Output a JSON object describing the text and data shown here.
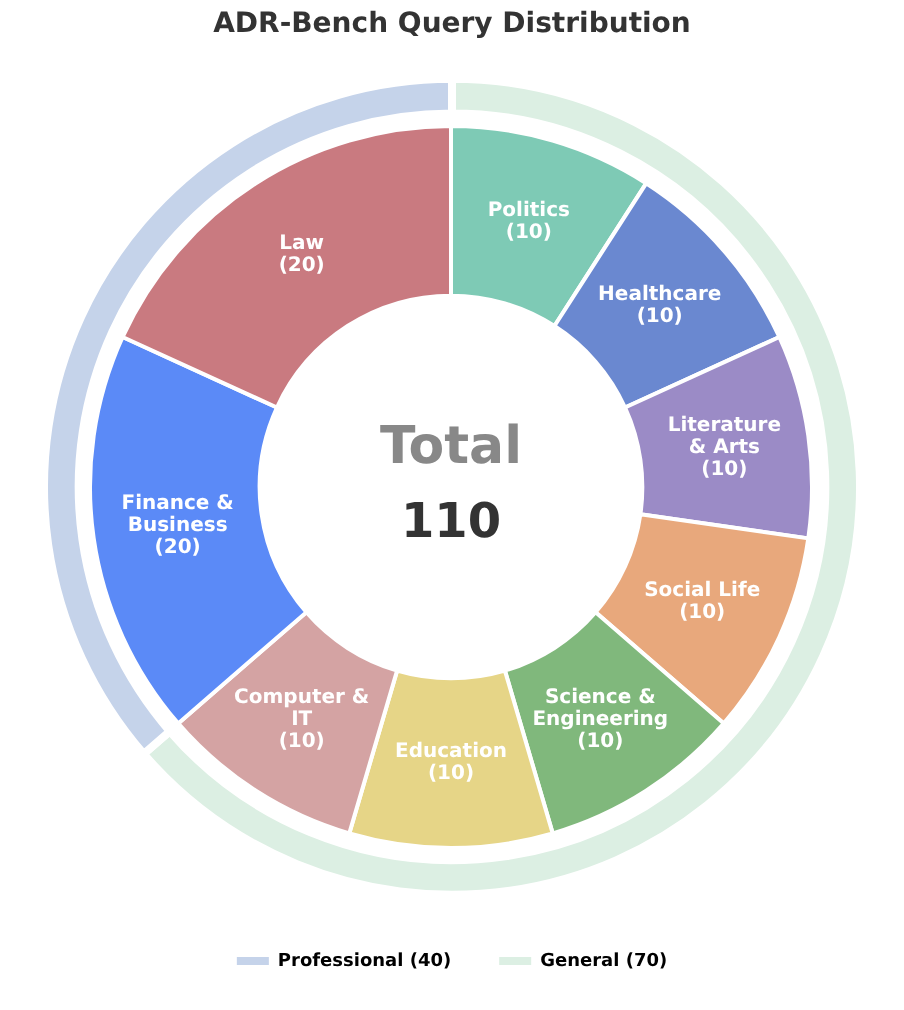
{
  "chart_data": [
    {
      "type": "donut",
      "title": "ADR-Bench Query Distribution",
      "categories": [
        "Professional (40)",
        "General (70)"
      ],
      "values": [
        40,
        70
      ],
      "colors": [
        "#c5d3ea",
        "#dcefe3"
      ],
      "legend": "bottom"
    },
    {
      "type": "donut",
      "categories": [
        "Law",
        "Finance & Business",
        "Computer & IT",
        "Education",
        "Science & Engineering",
        "Social Life",
        "Literature & Arts",
        "Healthcare",
        "Politics"
      ],
      "values": [
        20,
        20,
        10,
        10,
        10,
        10,
        10,
        10,
        10
      ],
      "value_labels": [
        "(20)",
        "(20)",
        "(10)",
        "(10)",
        "(10)",
        "(10)",
        "(10)",
        "(10)",
        "(10)"
      ],
      "colors": [
        "#c97a80",
        "#5b8af7",
        "#d4a3a3",
        "#e6d587",
        "#80b87c",
        "#e8a87c",
        "#9b8bc6",
        "#6a88d0",
        "#7ecab5"
      ],
      "annotations": [
        "Total",
        "110"
      ]
    }
  ]
}
